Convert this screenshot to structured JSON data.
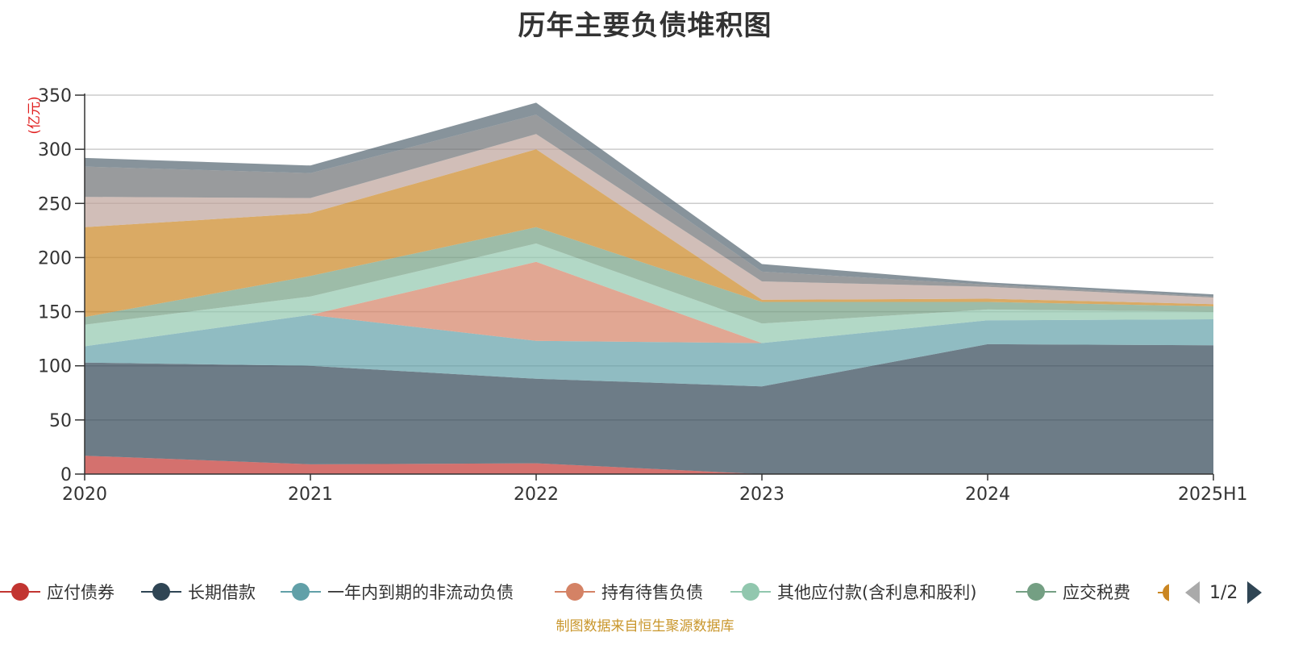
{
  "title": "历年主要负债堆积图",
  "footer": "制图数据来自恒生聚源数据库",
  "pager": {
    "label": "1/2"
  },
  "chart_data": {
    "type": "area",
    "stacked": true,
    "title": "历年主要负债堆积图",
    "ylabel": "(亿元)",
    "ylim": [
      0,
      350
    ],
    "yticks": [
      0,
      50,
      100,
      150,
      200,
      250,
      300,
      350
    ],
    "categories": [
      "2020",
      "2021",
      "2022",
      "2023",
      "2024",
      "2025H1"
    ],
    "grid": true,
    "legend_position": "bottom",
    "series": [
      {
        "name": "应付债券",
        "color": "#c23531",
        "values": [
          17,
          9,
          10,
          0,
          0,
          0
        ]
      },
      {
        "name": "长期借款",
        "color": "#2f4554",
        "values": [
          86,
          91,
          78,
          81,
          120,
          119
        ]
      },
      {
        "name": "一年内到期的非流动负债",
        "color": "#61a0a8",
        "values": [
          15,
          47,
          35,
          40,
          22,
          24
        ]
      },
      {
        "name": "持有待售负债",
        "color": "#d48265",
        "values": [
          0,
          0,
          73,
          0,
          0,
          0
        ]
      },
      {
        "name": "其他应付款(含利息和股利)",
        "color": "#91c7ae",
        "values": [
          20,
          17,
          17,
          18,
          10,
          7
        ]
      },
      {
        "name": "应交税费",
        "color": "#749f83",
        "values": [
          7,
          19,
          15,
          20,
          7,
          5
        ]
      },
      {
        "name": "",
        "color": "#ca8622",
        "values": [
          83,
          58,
          72,
          2,
          3,
          2
        ]
      },
      {
        "name": "",
        "color": "#bda29a",
        "values": [
          28,
          14,
          14,
          17,
          11,
          6
        ]
      },
      {
        "name": "",
        "color": "#6e7074",
        "values": [
          28,
          23,
          18,
          9,
          2,
          1
        ]
      },
      {
        "name": "",
        "color": "#546570",
        "values": [
          8,
          7,
          11,
          7,
          2,
          2
        ]
      }
    ]
  }
}
